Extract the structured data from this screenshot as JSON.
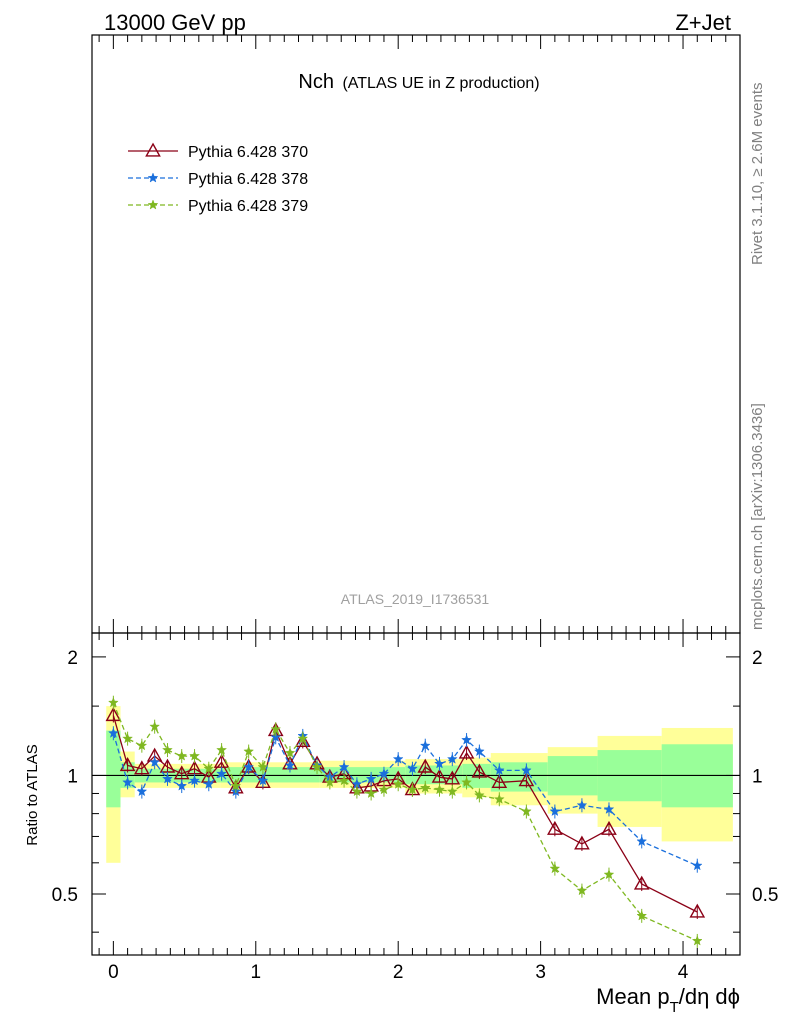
{
  "header": {
    "left": "13000 GeV pp",
    "right": "Z+Jet"
  },
  "plot_title": {
    "main": "Nch",
    "sub": "(ATLAS UE in Z production)"
  },
  "side_label_top": "Rivet 3.1.10, ≥ 2.6M events",
  "side_label_bottom": "mcplots.cern.ch [arXiv:1306.3436]",
  "analysis_label": "ATLAS_2019_I1736531",
  "colors": {
    "py370": "#8b0016",
    "py378": "#1a6fdc",
    "py379": "#7fb821",
    "band_inner": "#99ff99",
    "band_outer": "#ffff99"
  },
  "chart_data": {
    "type": "line",
    "xlabel_main": "Mean p",
    "xlabel_sub": "T",
    "xlabel_rest": "/dη dϕ",
    "ylabel": "Ratio to ATLAS",
    "xlim": [
      -0.15,
      4.4
    ],
    "ylim": [
      0.35,
      2.3
    ],
    "y_scale": "log",
    "x_ticks": [
      0,
      1,
      2,
      3,
      4
    ],
    "x_tick_labels": [
      "0",
      "1",
      "2",
      "3",
      "4"
    ],
    "y_ticks": [
      0.5,
      1,
      2
    ],
    "y_tick_labels": [
      "0.5",
      "1",
      "2"
    ],
    "reference_line": 1,
    "band": [
      {
        "x0": -0.05,
        "x1": 0.05,
        "outer": [
          0.6,
          1.5
        ],
        "inner": [
          0.83,
          1.3
        ]
      },
      {
        "x0": 0.05,
        "x1": 0.15,
        "outer": [
          0.88,
          1.15
        ],
        "inner": [
          0.93,
          1.08
        ]
      },
      {
        "x0": 0.15,
        "x1": 0.75,
        "outer": [
          0.93,
          1.07
        ],
        "inner": [
          0.96,
          1.04
        ]
      },
      {
        "x0": 0.75,
        "x1": 1.45,
        "outer": [
          0.93,
          1.08
        ],
        "inner": [
          0.96,
          1.05
        ]
      },
      {
        "x0": 1.45,
        "x1": 2.05,
        "outer": [
          0.93,
          1.09
        ],
        "inner": [
          0.96,
          1.05
        ]
      },
      {
        "x0": 2.05,
        "x1": 2.45,
        "outer": [
          0.9,
          1.1
        ],
        "inner": [
          0.95,
          1.06
        ]
      },
      {
        "x0": 2.45,
        "x1": 2.65,
        "outer": [
          0.88,
          1.11
        ],
        "inner": [
          0.93,
          1.07
        ]
      },
      {
        "x0": 2.65,
        "x1": 3.05,
        "outer": [
          0.84,
          1.14
        ],
        "inner": [
          0.91,
          1.08
        ]
      },
      {
        "x0": 3.05,
        "x1": 3.4,
        "outer": [
          0.8,
          1.18
        ],
        "inner": [
          0.89,
          1.12
        ]
      },
      {
        "x0": 3.4,
        "x1": 3.85,
        "outer": [
          0.74,
          1.26
        ],
        "inner": [
          0.86,
          1.16
        ]
      },
      {
        "x0": 3.85,
        "x1": 4.35,
        "outer": [
          0.68,
          1.32
        ],
        "inner": [
          0.83,
          1.2
        ]
      }
    ],
    "series": [
      {
        "name": "Pythia 6.428 370",
        "color_key": "py370",
        "marker": "triangle",
        "dash": "solid",
        "x": [
          0.0,
          0.1,
          0.2,
          0.29,
          0.38,
          0.48,
          0.57,
          0.67,
          0.76,
          0.86,
          0.95,
          1.05,
          1.14,
          1.24,
          1.33,
          1.43,
          1.52,
          1.62,
          1.71,
          1.81,
          1.9,
          2.0,
          2.1,
          2.19,
          2.29,
          2.38,
          2.48,
          2.57,
          2.71,
          2.9,
          3.1,
          3.29,
          3.48,
          3.71,
          4.1
        ],
        "y": [
          1.42,
          1.06,
          1.04,
          1.12,
          1.05,
          1.01,
          1.04,
          0.99,
          1.08,
          0.93,
          1.05,
          0.96,
          1.3,
          1.07,
          1.22,
          1.07,
          0.99,
          1.01,
          0.93,
          0.94,
          0.97,
          0.98,
          0.92,
          1.05,
          0.99,
          0.98,
          1.14,
          1.02,
          0.96,
          0.97,
          0.73,
          0.67,
          0.73,
          0.53,
          0.45
        ]
      },
      {
        "name": "Pythia 6.428 378",
        "color_key": "py378",
        "marker": "star",
        "dash": "dashed",
        "x": [
          0.0,
          0.1,
          0.2,
          0.29,
          0.38,
          0.48,
          0.57,
          0.67,
          0.76,
          0.86,
          0.95,
          1.05,
          1.14,
          1.24,
          1.33,
          1.43,
          1.52,
          1.62,
          1.71,
          1.81,
          1.9,
          2.0,
          2.1,
          2.19,
          2.29,
          2.38,
          2.48,
          2.57,
          2.71,
          2.9,
          3.1,
          3.29,
          3.48,
          3.71,
          4.1
        ],
        "y": [
          1.28,
          0.96,
          0.91,
          1.08,
          0.98,
          0.94,
          0.97,
          0.95,
          1.01,
          0.91,
          1.05,
          0.97,
          1.25,
          1.06,
          1.26,
          1.06,
          0.99,
          1.05,
          0.95,
          0.98,
          1.01,
          1.1,
          1.04,
          1.19,
          1.07,
          1.1,
          1.23,
          1.15,
          1.03,
          1.03,
          0.81,
          0.84,
          0.82,
          0.68,
          0.59
        ]
      },
      {
        "name": "Pythia 6.428 379",
        "color_key": "py379",
        "marker": "star",
        "dash": "dashed",
        "x": [
          0.0,
          0.1,
          0.2,
          0.29,
          0.38,
          0.48,
          0.57,
          0.67,
          0.76,
          0.86,
          0.95,
          1.05,
          1.14,
          1.24,
          1.33,
          1.43,
          1.52,
          1.62,
          1.71,
          1.81,
          1.9,
          2.0,
          2.1,
          2.19,
          2.29,
          2.38,
          2.48,
          2.57,
          2.71,
          2.9,
          3.1,
          3.29,
          3.48,
          3.71,
          4.1
        ],
        "y": [
          1.53,
          1.24,
          1.19,
          1.33,
          1.16,
          1.12,
          1.12,
          1.04,
          1.16,
          0.94,
          1.15,
          1.05,
          1.31,
          1.14,
          1.24,
          1.05,
          0.96,
          0.97,
          0.91,
          0.9,
          0.92,
          0.95,
          0.92,
          0.93,
          0.92,
          0.91,
          0.96,
          0.89,
          0.87,
          0.81,
          0.58,
          0.51,
          0.56,
          0.44,
          0.38
        ]
      }
    ]
  }
}
